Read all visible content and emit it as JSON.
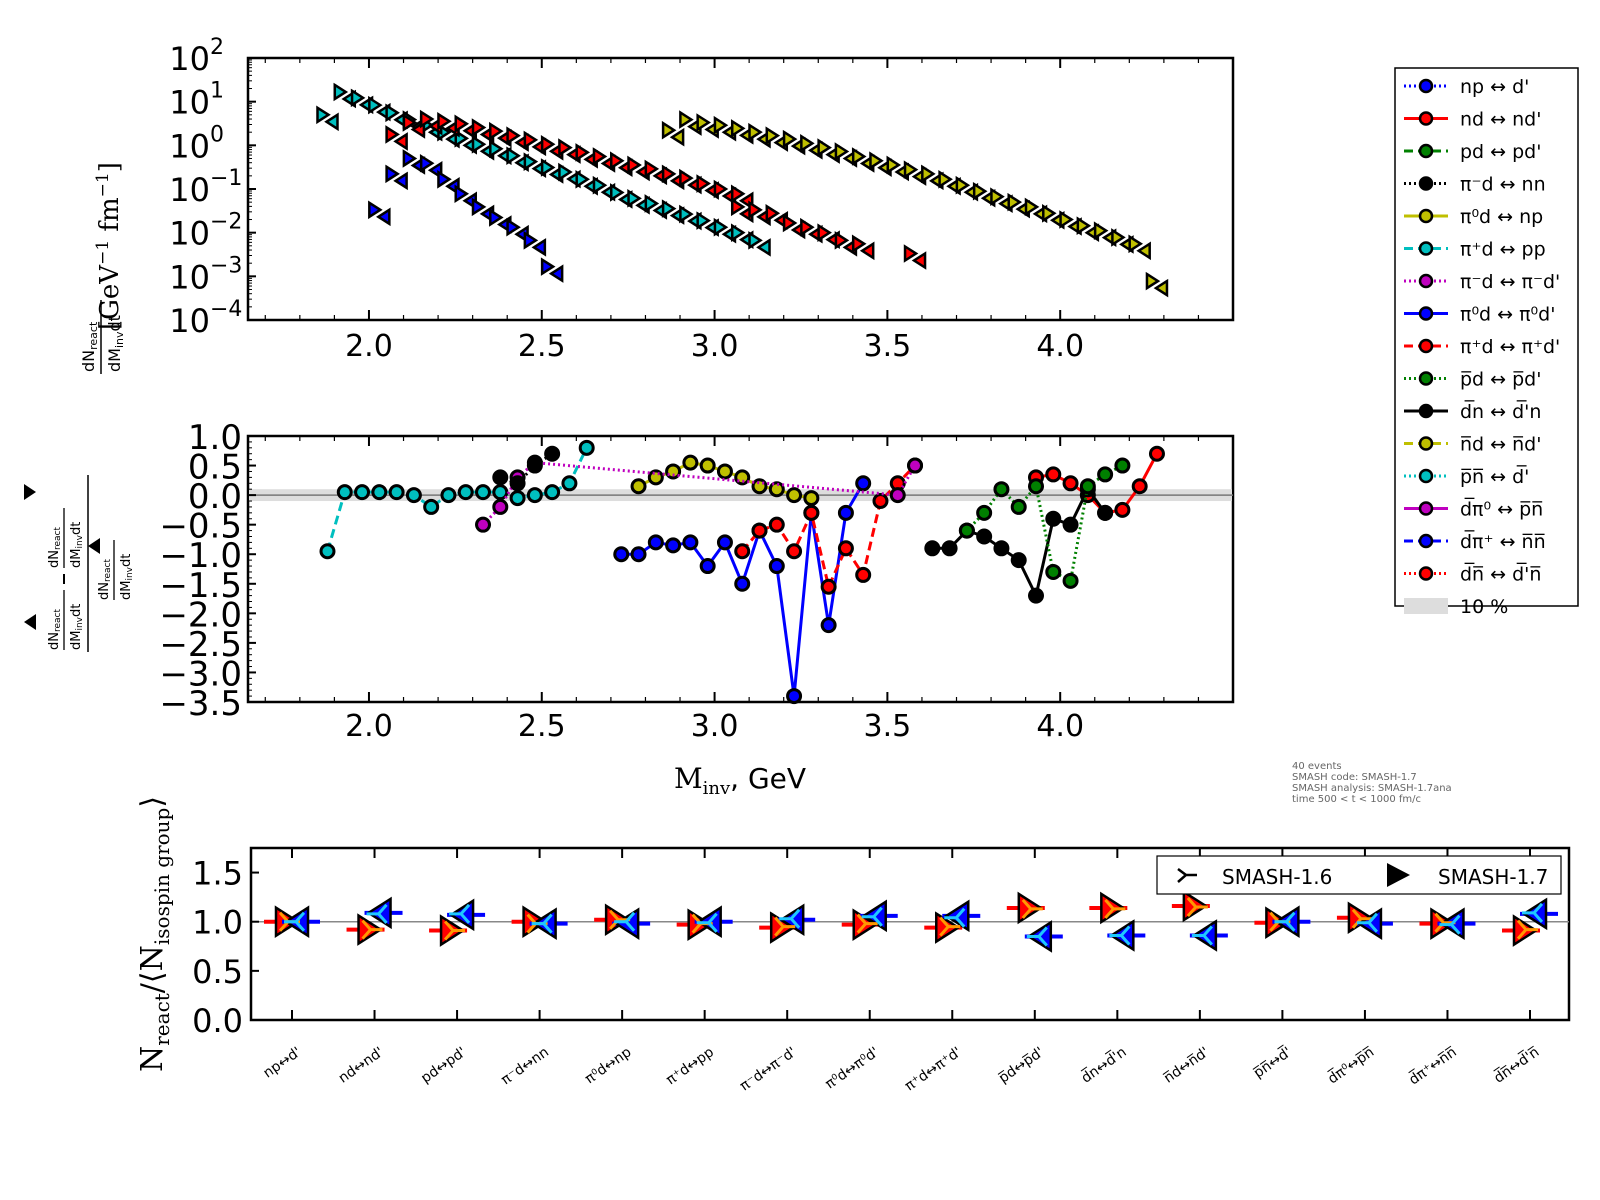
{
  "figure": {
    "info_text": [
      "40 events",
      "SMASH code:      SMASH-1.7",
      "SMASH analysis:  SMASH-1.7ana",
      "time 500 < t < 1000 fm/c"
    ]
  },
  "legend": {
    "items": [
      {
        "label": "np ↔ d'",
        "color": "#0000ff",
        "style": "dotted"
      },
      {
        "label": "nd ↔ nd'",
        "color": "#ff0000",
        "style": "solid"
      },
      {
        "label": "pd ↔ pd'",
        "color": "#008000",
        "style": "dashed"
      },
      {
        "label": "π⁻d ↔ nn",
        "color": "#000000",
        "style": "dotted"
      },
      {
        "label": "π⁰d ↔ np",
        "color": "#bfbf00",
        "style": "solid"
      },
      {
        "label": "π⁺d ↔ pp",
        "color": "#00bfbf",
        "style": "dashed"
      },
      {
        "label": "π⁻d ↔ π⁻d'",
        "color": "#bf00bf",
        "style": "dotted"
      },
      {
        "label": "π⁰d ↔ π⁰d'",
        "color": "#0000ff",
        "style": "solid"
      },
      {
        "label": "π⁺d ↔ π⁺d'",
        "color": "#ff0000",
        "style": "dashed"
      },
      {
        "label": "p̅d ↔ p̅d'",
        "color": "#008000",
        "style": "dotted"
      },
      {
        "label": "d̅n ↔ d̅'n",
        "color": "#000000",
        "style": "solid"
      },
      {
        "label": "n̅d ↔ n̅d'",
        "color": "#bfbf00",
        "style": "dashed"
      },
      {
        "label": "p̅n̅ ↔ d̅'",
        "color": "#00bfbf",
        "style": "dotted"
      },
      {
        "label": "d̅π⁰ ↔ p̅n̅",
        "color": "#bf00bf",
        "style": "solid"
      },
      {
        "label": "d̅π⁺ ↔ n̅n̅",
        "color": "#0000ff",
        "style": "dashed"
      },
      {
        "label": "d̅n̅ ↔ d̅'n̅",
        "color": "#ff0000",
        "style": "dotted"
      }
    ],
    "band_label": "10 %"
  },
  "chart_data": [
    {
      "id": "spectra",
      "type": "scatter",
      "title": "",
      "xlabel": "",
      "ylabel": "dN_react/dM_inv dt [GeV^-1 fm^-1]",
      "yscale": "log",
      "xlim": [
        1.65,
        4.5
      ],
      "ylim": [
        0.0001,
        100
      ],
      "xticks": [
        "2.0",
        "2.5",
        "3.0",
        "3.5",
        "4.0"
      ],
      "xtick_values": [
        2.0,
        2.5,
        3.0,
        3.5,
        4.0
      ],
      "yticks": [
        "10^2",
        "10^1",
        "10^0",
        "10^-1",
        "10^-2",
        "10^-3",
        "10^-4"
      ],
      "ytick_values": [
        100,
        10,
        1,
        0.1,
        0.01,
        0.001,
        0.0001
      ],
      "markers": {
        "forward": "right-triangle",
        "backward": "left-triangle"
      },
      "series": [
        {
          "name": "pi+d <-> pp",
          "color": "#00bfbf",
          "x": [
            1.88,
            1.93,
            1.98,
            2.03,
            2.08,
            2.13,
            2.18,
            2.23,
            2.28,
            2.33,
            2.38,
            2.43,
            2.48,
            2.53,
            2.58,
            2.63,
            2.68,
            2.73,
            2.78,
            2.83,
            2.88,
            2.93,
            2.98,
            3.03,
            3.08,
            3.13
          ],
          "y": [
            4.5,
            15,
            11,
            7.5,
            5.0,
            3.5,
            2.6,
            1.8,
            1.3,
            0.95,
            0.75,
            0.52,
            0.38,
            0.28,
            0.22,
            0.15,
            0.11,
            0.075,
            0.055,
            0.042,
            0.032,
            0.024,
            0.017,
            0.012,
            0.009,
            0.006
          ]
        },
        {
          "name": "nd <-> nd'",
          "color": "#ff0000",
          "x": [
            2.08,
            2.13,
            2.18,
            2.23,
            2.28,
            2.33,
            2.38,
            2.43,
            2.48,
            2.53,
            2.58,
            2.63,
            2.68,
            2.73,
            2.78,
            2.83,
            2.88,
            2.93,
            2.98,
            3.03,
            3.08
          ],
          "y": [
            1.6,
            3.0,
            3.6,
            3.2,
            2.8,
            2.3,
            1.9,
            1.5,
            1.2,
            0.95,
            0.8,
            0.62,
            0.5,
            0.4,
            0.32,
            0.26,
            0.2,
            0.16,
            0.12,
            0.09,
            0.07
          ]
        },
        {
          "name": "pi0d <-> pi0d'",
          "color": "#0000ff",
          "x": [
            2.03,
            2.08,
            2.13,
            2.18,
            2.23,
            2.28,
            2.33,
            2.38,
            2.43,
            2.48,
            2.53
          ],
          "y": [
            0.03,
            0.2,
            0.45,
            0.35,
            0.15,
            0.07,
            0.035,
            0.02,
            0.012,
            0.006,
            0.0015
          ]
        },
        {
          "name": "pi0d <-> np",
          "color": "#bfbf00",
          "x": [
            2.88,
            2.93,
            2.98,
            3.03,
            3.08,
            3.13,
            3.18,
            3.23,
            3.28,
            3.33,
            3.38,
            3.43,
            3.48,
            3.53,
            3.58,
            3.63,
            3.68,
            3.73,
            3.78,
            3.83,
            3.88,
            3.93,
            3.98,
            4.03,
            4.08,
            4.13,
            4.18,
            4.23,
            4.28
          ],
          "y": [
            2.0,
            3.5,
            3.0,
            2.6,
            2.2,
            1.8,
            1.5,
            1.25,
            1.0,
            0.8,
            0.65,
            0.5,
            0.4,
            0.32,
            0.25,
            0.2,
            0.15,
            0.11,
            0.08,
            0.06,
            0.045,
            0.035,
            0.025,
            0.018,
            0.013,
            0.01,
            0.007,
            0.005,
            0.0007
          ]
        },
        {
          "name": "pi+d <-> pi+d'",
          "color": "#ff0000",
          "x": [
            3.08,
            3.13,
            3.18,
            3.23,
            3.28,
            3.33,
            3.38,
            3.43,
            3.58
          ],
          "y": [
            0.035,
            0.03,
            0.025,
            0.015,
            0.012,
            0.009,
            0.006,
            0.005,
            0.003
          ]
        }
      ]
    },
    {
      "id": "asymmetry",
      "type": "line",
      "xlabel": "M_inv, GeV",
      "ylabel": "(dN/dMdt(fwd) - dN/dMdt(bwd)) / dN/dMdt(fwd)",
      "xlim": [
        1.65,
        4.5
      ],
      "ylim": [
        -3.5,
        1.0
      ],
      "xticks": [
        "2.0",
        "2.5",
        "3.0",
        "3.5",
        "4.0"
      ],
      "xtick_values": [
        2.0,
        2.5,
        3.0,
        3.5,
        4.0
      ],
      "yticks": [
        "1.0",
        "0.5",
        "0.0",
        "−0.5",
        "−1.0",
        "−1.5",
        "−2.0",
        "−2.5",
        "−3.0",
        "−3.5"
      ],
      "ytick_values": [
        1.0,
        0.5,
        0.0,
        -0.5,
        -1.0,
        -1.5,
        -2.0,
        -2.5,
        -3.0,
        -3.5
      ],
      "band": {
        "label": "10 %",
        "range": [
          -0.1,
          0.1
        ]
      },
      "series": [
        {
          "name": "pi+d <-> pp",
          "color": "#00bfbf",
          "style": "dashed",
          "x": [
            1.88,
            1.93,
            1.98,
            2.03,
            2.08,
            2.13,
            2.18,
            2.23,
            2.28,
            2.33,
            2.38,
            2.43,
            2.48,
            2.53,
            2.58,
            2.63
          ],
          "y": [
            -0.95,
            0.05,
            0.05,
            0.05,
            0.05,
            0.0,
            -0.2,
            0.0,
            0.05,
            0.05,
            0.05,
            -0.05,
            0.0,
            0.05,
            0.2,
            0.8
          ]
        },
        {
          "name": "nd <-> nd'",
          "color": "#ff0000",
          "style": "solid",
          "x": [
            3.93,
            3.98,
            4.03,
            4.08,
            4.13,
            4.18,
            4.23,
            4.28
          ],
          "y": [
            0.3,
            0.35,
            0.2,
            0.0,
            -0.3,
            -0.25,
            0.15,
            0.7
          ]
        },
        {
          "name": "pi0d <-> pi0d'",
          "color": "#0000ff",
          "style": "solid",
          "x": [
            2.73,
            2.78,
            2.83,
            2.88,
            2.93,
            2.98,
            3.03,
            3.08,
            3.13,
            3.18,
            3.23,
            3.28,
            3.33,
            3.38,
            3.43
          ],
          "y": [
            -1.0,
            -1.0,
            -0.8,
            -0.85,
            -0.8,
            -1.2,
            -0.8,
            -1.5,
            -0.6,
            -1.2,
            -3.4,
            -0.3,
            -2.2,
            -0.3,
            0.2
          ]
        },
        {
          "name": "pi0d <-> np",
          "color": "#bfbf00",
          "style": "solid",
          "x": [
            2.78,
            2.83,
            2.88,
            2.93,
            2.98,
            3.03,
            3.08,
            3.13,
            3.18,
            3.23,
            3.28
          ],
          "y": [
            0.15,
            0.3,
            0.4,
            0.55,
            0.5,
            0.4,
            0.3,
            0.15,
            0.1,
            0.0,
            -0.05
          ]
        },
        {
          "name": "pi+d <-> pi+d'",
          "color": "#ff0000",
          "style": "dashed",
          "x": [
            3.08,
            3.13,
            3.18,
            3.23,
            3.28,
            3.33,
            3.38,
            3.43,
            3.48,
            3.53,
            3.58
          ],
          "y": [
            -0.95,
            -0.6,
            -0.5,
            -0.95,
            -0.3,
            -1.55,
            -0.9,
            -1.35,
            -0.1,
            0.2,
            0.5
          ]
        },
        {
          "name": "dbar n <-> dbar' n",
          "color": "#000000",
          "style": "solid",
          "x": [
            3.63,
            3.68,
            3.73,
            3.78,
            3.83,
            3.88,
            3.93,
            3.98,
            4.03,
            4.08,
            4.13
          ],
          "y": [
            -0.9,
            -0.9,
            -0.6,
            -0.7,
            -0.9,
            -1.1,
            -1.7,
            -0.4,
            -0.5,
            0.1,
            -0.3
          ]
        },
        {
          "name": "pbar d <-> pbar d'",
          "color": "#008000",
          "style": "dotted",
          "x": [
            3.73,
            3.78,
            3.83,
            3.88,
            3.93,
            3.98,
            4.03,
            4.08,
            4.13,
            4.18
          ],
          "y": [
            -0.6,
            -0.3,
            0.1,
            -0.2,
            0.15,
            -1.3,
            -1.45,
            0.15,
            0.35,
            0.5
          ]
        },
        {
          "name": "pi-d <-> pi-d'",
          "color": "#bf00bf",
          "style": "dotted",
          "x": [
            2.33,
            2.38,
            2.43,
            2.48,
            3.53,
            3.58
          ],
          "y": [
            -0.5,
            -0.2,
            0.3,
            0.55,
            0.0,
            0.5
          ]
        },
        {
          "name": "pi-d <-> nn",
          "color": "#000000",
          "style": "dotted",
          "x": [
            2.38,
            2.43,
            2.48,
            2.53
          ],
          "y": [
            0.3,
            0.2,
            0.5,
            0.7
          ]
        }
      ]
    },
    {
      "id": "ratio",
      "type": "scatter",
      "xlabel": "",
      "ylabel": "N_react / <N_isospin group>",
      "ylim": [
        0.0,
        1.75
      ],
      "yticks": [
        "1.5",
        "1.0",
        "0.5",
        "0.0"
      ],
      "ytick_values": [
        1.5,
        1.0,
        0.5,
        0.0
      ],
      "categories": [
        "np↔d'",
        "nd↔nd'",
        "pd↔pd'",
        "π⁻d↔nn",
        "π⁰d↔np",
        "π⁺d↔pp",
        "π⁻d↔π⁻d'",
        "π⁰d↔π⁰d'",
        "π⁺d↔π⁺d'",
        "p̅d↔p̅d'",
        "d̅n↔d̅'n",
        "n̅d↔n̅d'",
        "p̅n̅↔d̅'",
        "d̅π⁰↔p̅n̅",
        "d̅π⁺↔n̅n̅",
        "d̅n̅↔d̅'n̅"
      ],
      "legend": [
        {
          "label": "SMASH-1.6",
          "marker": "tri-right"
        },
        {
          "label": "SMASH-1.7",
          "marker": "triangle-right"
        }
      ],
      "legend_placement": "top-right",
      "series": [
        {
          "name": "forward (SMASH-1.7)",
          "color": "#ff0000",
          "values": [
            1.0,
            0.92,
            0.91,
            1.0,
            1.02,
            0.97,
            0.94,
            0.97,
            0.94,
            1.14,
            1.14,
            1.16,
            0.99,
            1.04,
            0.98,
            0.91
          ]
        },
        {
          "name": "backward (SMASH-1.7)",
          "color": "#0000ff",
          "values": [
            1.0,
            1.09,
            1.07,
            0.98,
            0.98,
            1.0,
            1.02,
            1.06,
            1.06,
            0.85,
            0.86,
            0.86,
            1.0,
            0.98,
            0.98,
            1.08
          ]
        },
        {
          "name": "forward (SMASH-1.6)",
          "color": "#ff9900",
          "values": [
            1.0,
            0.92,
            0.91,
            0.98,
            1.02,
            0.98,
            0.95,
            0.98,
            0.95,
            1.13,
            1.13,
            1.15,
            1.0,
            1.03,
            0.99,
            0.92
          ]
        },
        {
          "name": "backward (SMASH-1.6)",
          "color": "#1ec8ff",
          "values": [
            1.0,
            1.08,
            1.08,
            0.98,
            1.0,
            0.99,
            1.03,
            1.05,
            1.04,
            0.85,
            0.86,
            0.86,
            1.0,
            0.99,
            0.97,
            1.09
          ]
        }
      ]
    }
  ]
}
